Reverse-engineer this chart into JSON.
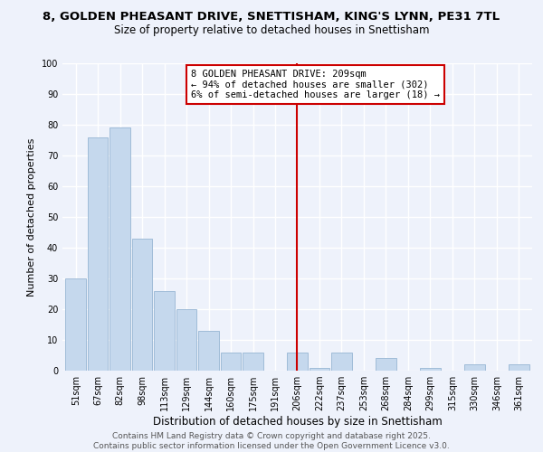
{
  "title": "8, GOLDEN PHEASANT DRIVE, SNETTISHAM, KING'S LYNN, PE31 7TL",
  "subtitle": "Size of property relative to detached houses in Snettisham",
  "xlabel": "Distribution of detached houses by size in Snettisham",
  "ylabel": "Number of detached properties",
  "categories": [
    "51sqm",
    "67sqm",
    "82sqm",
    "98sqm",
    "113sqm",
    "129sqm",
    "144sqm",
    "160sqm",
    "175sqm",
    "191sqm",
    "206sqm",
    "222sqm",
    "237sqm",
    "253sqm",
    "268sqm",
    "284sqm",
    "299sqm",
    "315sqm",
    "330sqm",
    "346sqm",
    "361sqm"
  ],
  "values": [
    30,
    76,
    79,
    43,
    26,
    20,
    13,
    6,
    6,
    0,
    6,
    1,
    6,
    0,
    4,
    0,
    1,
    0,
    2,
    0,
    2
  ],
  "bar_color": "#c5d8ed",
  "bar_edge_color": "#a0bcd8",
  "vline_x": 10,
  "vline_color": "#cc0000",
  "annotation_line1": "8 GOLDEN PHEASANT DRIVE: 209sqm",
  "annotation_line2": "← 94% of detached houses are smaller (302)",
  "annotation_line3": "6% of semi-detached houses are larger (18) →",
  "annotation_box_color": "#ffffff",
  "annotation_box_edge_color": "#cc0000",
  "ylim": [
    0,
    100
  ],
  "yticks": [
    0,
    10,
    20,
    30,
    40,
    50,
    60,
    70,
    80,
    90,
    100
  ],
  "background_color": "#eef2fb",
  "grid_color": "#ffffff",
  "footer_line1": "Contains HM Land Registry data © Crown copyright and database right 2025.",
  "footer_line2": "Contains public sector information licensed under the Open Government Licence v3.0.",
  "title_fontsize": 9.5,
  "subtitle_fontsize": 8.5,
  "xlabel_fontsize": 8.5,
  "ylabel_fontsize": 8.0,
  "tick_fontsize": 7,
  "annotation_fontsize": 7.5,
  "footer_fontsize": 6.5
}
